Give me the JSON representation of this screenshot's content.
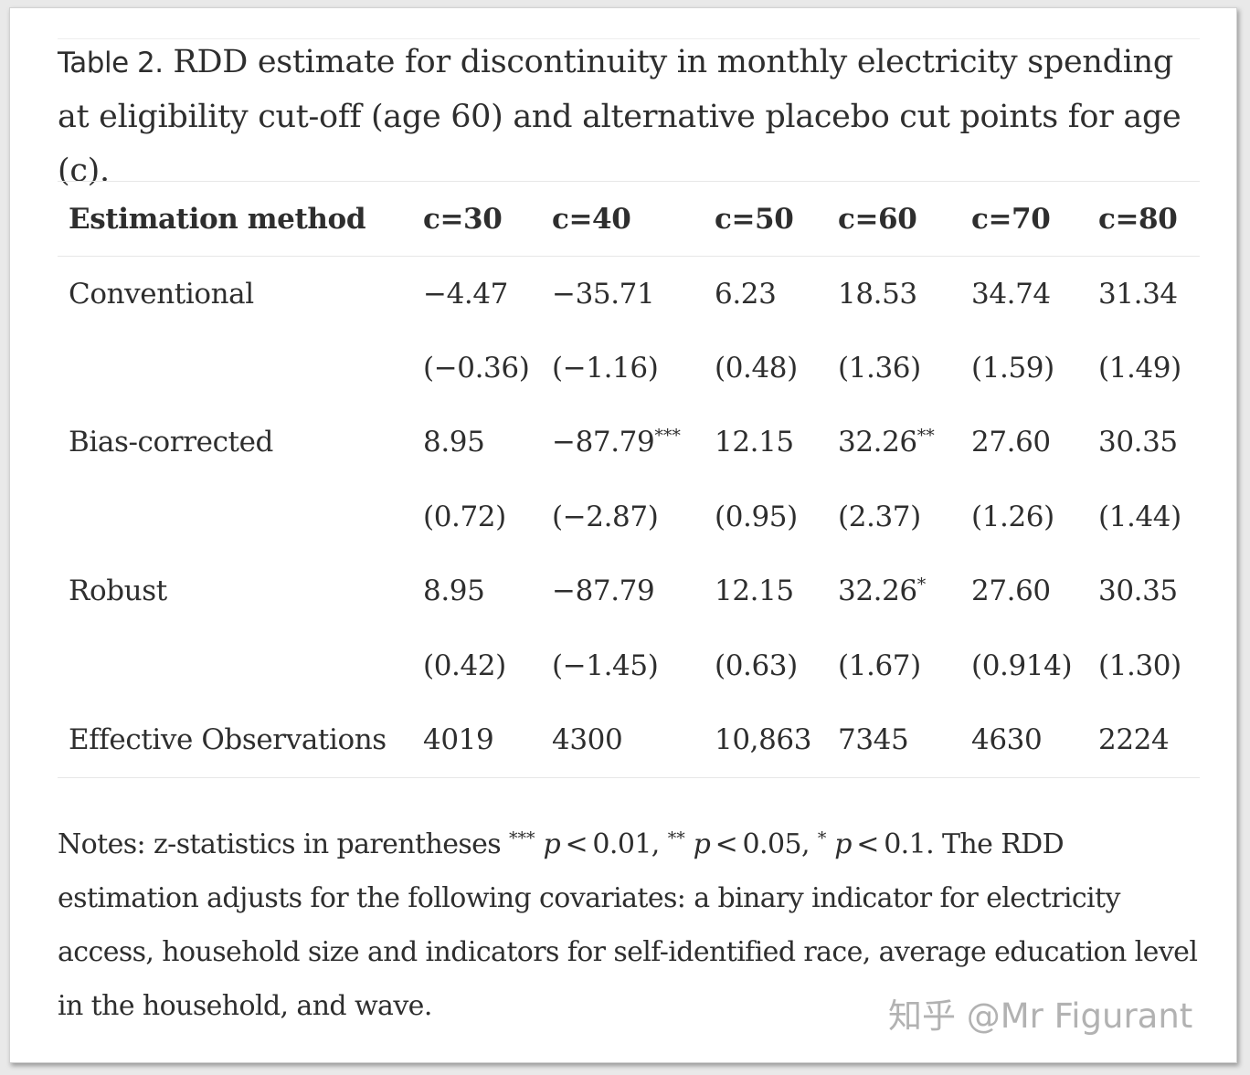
{
  "caption": {
    "label": "Table 2.",
    "text": " RDD estimate for discontinuity in monthly electricity spending at eligibility cut-off (age 60) and alternative placebo cut points for age (c)."
  },
  "table": {
    "headers": [
      "Estimation method",
      "c=30",
      "c=40",
      "c=50",
      "c=60",
      "c=70",
      "c=80"
    ],
    "rows": [
      {
        "label": "Conventional",
        "cells": [
          {
            "v": "−4.47",
            "s": ""
          },
          {
            "v": "−35.71",
            "s": ""
          },
          {
            "v": "6.23",
            "s": ""
          },
          {
            "v": "18.53",
            "s": ""
          },
          {
            "v": "34.74",
            "s": ""
          },
          {
            "v": "31.34",
            "s": ""
          }
        ]
      },
      {
        "label": "",
        "cells": [
          {
            "v": "(−0.36)",
            "s": ""
          },
          {
            "v": "(−1.16)",
            "s": ""
          },
          {
            "v": "(0.48)",
            "s": ""
          },
          {
            "v": "(1.36)",
            "s": ""
          },
          {
            "v": "(1.59)",
            "s": ""
          },
          {
            "v": "(1.49)",
            "s": ""
          }
        ]
      },
      {
        "label": "Bias-corrected",
        "cells": [
          {
            "v": "8.95",
            "s": ""
          },
          {
            "v": "−87.79",
            "s": "***"
          },
          {
            "v": "12.15",
            "s": ""
          },
          {
            "v": "32.26",
            "s": "**"
          },
          {
            "v": "27.60",
            "s": ""
          },
          {
            "v": "30.35",
            "s": ""
          }
        ]
      },
      {
        "label": "",
        "cells": [
          {
            "v": "(0.72)",
            "s": ""
          },
          {
            "v": "(−2.87)",
            "s": ""
          },
          {
            "v": "(0.95)",
            "s": ""
          },
          {
            "v": "(2.37)",
            "s": ""
          },
          {
            "v": "(1.26)",
            "s": ""
          },
          {
            "v": "(1.44)",
            "s": ""
          }
        ]
      },
      {
        "label": "Robust",
        "cells": [
          {
            "v": "8.95",
            "s": ""
          },
          {
            "v": "−87.79",
            "s": ""
          },
          {
            "v": "12.15",
            "s": ""
          },
          {
            "v": "32.26",
            "s": "*"
          },
          {
            "v": "27.60",
            "s": ""
          },
          {
            "v": "30.35",
            "s": ""
          }
        ]
      },
      {
        "label": "",
        "cells": [
          {
            "v": "(0.42)",
            "s": ""
          },
          {
            "v": "(−1.45)",
            "s": ""
          },
          {
            "v": "(0.63)",
            "s": ""
          },
          {
            "v": "(1.67)",
            "s": ""
          },
          {
            "v": "(0.914)",
            "s": ""
          },
          {
            "v": "(1.30)",
            "s": ""
          }
        ]
      },
      {
        "label": "Effective Observations",
        "cells": [
          {
            "v": "4019",
            "s": ""
          },
          {
            "v": "4300",
            "s": ""
          },
          {
            "v": "10,863",
            "s": ""
          },
          {
            "v": "7345",
            "s": ""
          },
          {
            "v": "4630",
            "s": ""
          },
          {
            "v": "2224",
            "s": ""
          }
        ]
      }
    ]
  },
  "notes": {
    "lead": "Notes: z-statistics in parentheses ",
    "star3": "***",
    "p1": "p",
    "t1": " < 0.01, ",
    "star2": "**",
    "p2": "p",
    "t2": " < 0.05, ",
    "star1": "*",
    "p3": "p",
    "t3": " < 0.1. The RDD estimation adjusts for the following covariates: a binary indicator for electricity access, household size and indicators for self-identified race, average education level in the household, and wave."
  },
  "watermark": "知乎 @Mr Figurant"
}
